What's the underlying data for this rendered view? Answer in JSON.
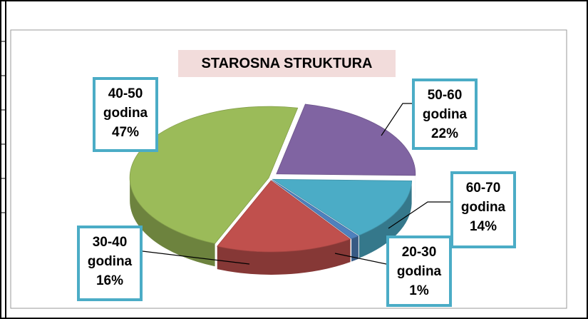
{
  "chart_data": {
    "type": "pie",
    "title": "STAROSNA STRUKTURA",
    "categories": [
      "50-60 godina",
      "60-70 godina",
      "20-30 godina",
      "30-40 godina",
      "40-50 godina"
    ],
    "values": [
      22,
      14,
      1,
      16,
      47
    ],
    "value_labels": [
      "22%",
      "14%",
      "1%",
      "16%",
      "47%"
    ],
    "colors": [
      "#8064a2",
      "#4bacc6",
      "#4f81bd",
      "#c0504d",
      "#9bbb59"
    ]
  }
}
